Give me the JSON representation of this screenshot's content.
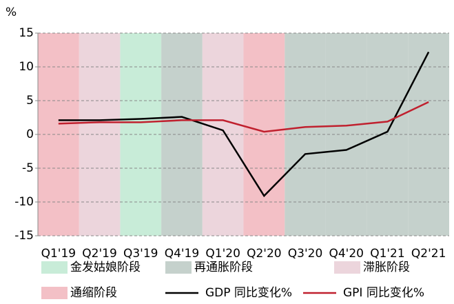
{
  "chart_data": {
    "type": "line",
    "y_label": "%",
    "categories": [
      "Q1'19",
      "Q2'19",
      "Q3'19",
      "Q4'19",
      "Q1'20",
      "Q2'20",
      "Q3'20",
      "Q4'20",
      "Q1'21",
      "Q2'21"
    ],
    "series": [
      {
        "name": "GDP 同比变化%",
        "color": "#000000",
        "values": [
          2.1,
          2.1,
          2.3,
          2.6,
          0.6,
          -9.1,
          -2.9,
          -2.3,
          0.4,
          12.2
        ]
      },
      {
        "name": "GPI 同比变化%",
        "color": "#c0202e",
        "values": [
          1.6,
          1.8,
          1.8,
          2.1,
          2.1,
          0.4,
          1.1,
          1.3,
          1.9,
          4.8
        ]
      }
    ],
    "regimes": [
      {
        "name": "金发姑娘阶段",
        "color": "#c8ecd8",
        "periods": [
          "Q3'19"
        ]
      },
      {
        "name": "再通胀阶段",
        "color": "#c5d1cc",
        "periods": [
          "Q4'19",
          "Q3'20",
          "Q4'20",
          "Q1'21",
          "Q2'21"
        ]
      },
      {
        "name": "滞胀阶段",
        "color": "#ecd5dc",
        "periods": [
          "Q2'19",
          "Q1'20"
        ]
      },
      {
        "name": "通缩阶段",
        "color": "#f3c0c6",
        "periods": [
          "Q1'19",
          "Q2'20"
        ]
      }
    ],
    "ylim": [
      -15,
      15
    ],
    "yticks": [
      -15,
      -10,
      -5,
      0,
      5,
      10,
      15
    ],
    "grid": true
  }
}
